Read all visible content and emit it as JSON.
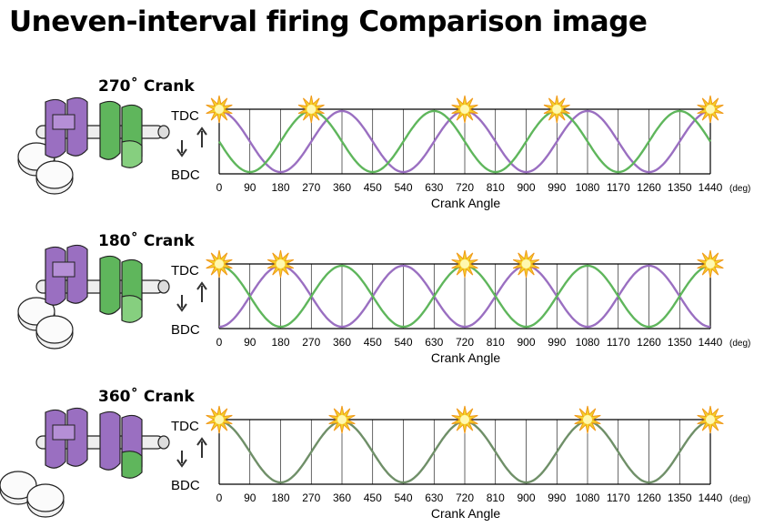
{
  "title": "Uneven-interval firing Comparison image",
  "colors": {
    "purple": "#9a6fc1",
    "green": "#5fb65c",
    "grey_green": "#6f8f68",
    "spark": "#f3d22b",
    "spark_stroke": "#f09a19",
    "grid": "#000000"
  },
  "labels": {
    "tdc": "TDC",
    "bdc": "BDC",
    "x_label": "Crank Angle",
    "unit": "(deg)"
  },
  "x_ticks": [
    "0",
    "90",
    "180",
    "270",
    "360",
    "450",
    "540",
    "630",
    "720",
    "810",
    "900",
    "990",
    "1080",
    "1170",
    "1260",
    "1350",
    "1440"
  ],
  "panels": [
    {
      "title": "270˚ Crank",
      "icon": "crankshaft-270-icon",
      "firing_angles_deg": [
        0,
        270,
        720,
        990,
        1440
      ],
      "series": [
        {
          "color": "purple",
          "tdc_at_deg": [
            0,
            360,
            720,
            1080,
            1440
          ]
        },
        {
          "color": "green",
          "tdc_at_deg": [
            270,
            630,
            990,
            1350
          ]
        }
      ]
    },
    {
      "title": "180˚ Crank",
      "icon": "crankshaft-180-icon",
      "firing_angles_deg": [
        0,
        180,
        720,
        900,
        1440
      ],
      "series": [
        {
          "color": "purple",
          "tdc_at_deg": [
            180,
            540,
            900,
            1260
          ]
        },
        {
          "color": "green",
          "tdc_at_deg": [
            0,
            360,
            720,
            1080,
            1440
          ]
        }
      ]
    },
    {
      "title": "360˚ Crank",
      "icon": "crankshaft-360-icon",
      "firing_angles_deg": [
        0,
        360,
        720,
        1080,
        1440
      ],
      "series": [
        {
          "color": "grey_green",
          "tdc_at_deg": [
            0,
            360,
            720,
            1080,
            1440
          ]
        }
      ]
    }
  ]
}
